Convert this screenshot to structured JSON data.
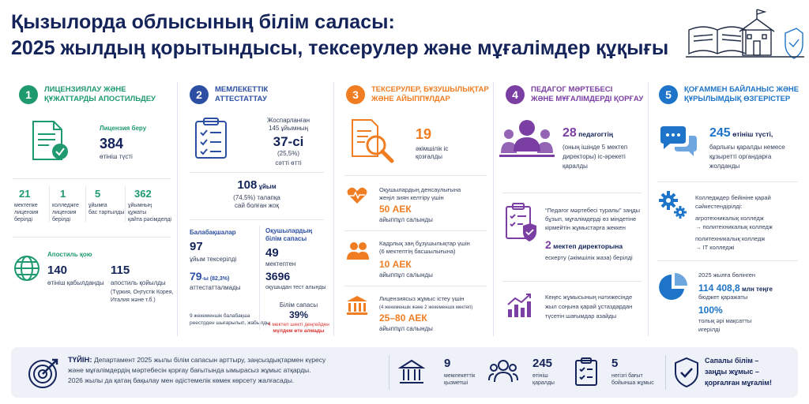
{
  "title": {
    "line1": "Қызылорда облысының білім саласы:",
    "line2": "2025 жылдың қорытындысы, тексерулер және мұғалімдер құқығы"
  },
  "colors": {
    "navy": "#14245a",
    "green": "#1f9a6e",
    "blue": "#2c4fa3",
    "orange": "#f07d22",
    "purple": "#7b3fa3",
    "lightblue": "#1e74c8",
    "red": "#d9322e"
  },
  "sections": [
    {
      "num": "1",
      "title1": "ЛИЦЕНЗИЯЛАУ ЖӘНЕ",
      "title2": "ҚҰЖАТТАРДЫ АПОСТИЛЬДЕУ",
      "license_label": "Лицензия беру",
      "license_value": "384",
      "license_sub": "өтініш түсті",
      "stats": [
        {
          "value": "21",
          "l1": "мектепке",
          "l2": "лицензия",
          "l3": "берілді"
        },
        {
          "value": "1",
          "l1": "колледжге",
          "l2": "лицензия",
          "l3": "берілді"
        },
        {
          "value": "5",
          "l1": "ұйымға",
          "l2": "бас тартылды",
          "l3": ""
        },
        {
          "value": "362",
          "l1": "ұйымның",
          "l2": "құжаты",
          "l3": "қайта рәсімделді"
        }
      ],
      "apostil_label": "Апостиль қою",
      "apostil_value1": "140",
      "apostil_sub1": "өтініш қабылданды",
      "apostil_value2": "115",
      "apostil_sub2": "апостиль қойылды",
      "apostil_sub3": "(Түркия, Оңтүстік Корея,",
      "apostil_sub4": "Италия және т.б.)"
    },
    {
      "num": "2",
      "title1": "МЕМЛЕКЕТТІК",
      "title2": "АТТЕСТАТТАУ",
      "planned1": "Жоспарланған",
      "planned2": "145 ұйымның",
      "planned_value": "37-сі",
      "planned_pct": "(25,5%)",
      "planned_sub": "сәтті өтті",
      "fail_value": "108",
      "fail_unit": " ұйым",
      "fail_sub1": "(74,5%) талапқа",
      "fail_sub2": "сай болған жоқ",
      "kinder_label": "Балабақшалар",
      "kinder_value": "97",
      "kinder_sub": "ұйым тексерілді",
      "kinder_value2": "79",
      "kinder_pct": "-ы (82,3%)",
      "kinder_sub2": "аттестатталмады",
      "kinder_note1": "9 жекеменшік балабақша",
      "kinder_note2": "реестрден шығарылып, жабылды",
      "quality_label1": "Оқушылардың",
      "quality_label2": "білім сапасы",
      "quality_value": "49",
      "quality_sub": "мектептен",
      "quality_value2": "3696",
      "quality_sub2": "оқушыдан тест алынды",
      "quality_note1": "Білім сапасы",
      "quality_note_value": "39%",
      "quality_note2": "4 мектеп шекті деңгейден",
      "quality_note3": "мүлдем өте алмады"
    },
    {
      "num": "3",
      "title1": "ТЕКСЕРУЛЕР, БҰЗУШЫЛЫҚТАР",
      "title2": "ЖӘНЕ АЙЫППҰЛДАР",
      "cases_value": "19",
      "cases_sub1": "әкімшілік іс",
      "cases_sub2": "қозғалды",
      "fines": [
        {
          "d1": "Оқушылардың денсаулығына",
          "d2": "жеңіл зиян келтіру үшін",
          "value": "50 АЕК",
          "sub": "айыппұл салынды"
        },
        {
          "d1": "Кадрлық заң бұзушылықтар үшін",
          "d2": "(6 мектептің басшылығына)",
          "value": "10 АЕК",
          "sub": "айыппұл салынды"
        },
        {
          "d1": "Лицензиясыз жұмыс істеу үшін",
          "d2": "(4 жекеменшік және 2 жекеменшік мектеп)",
          "value": "25–80 АЕК",
          "sub": "айыппұл салынды"
        }
      ]
    },
    {
      "num": "4",
      "title1": "ПЕДАГОГ МӘРТЕБЕСІ",
      "title2": "ЖӘНЕ МҰҒАЛІМДЕРДІ ҚОРҒАУ",
      "ped_value": "28",
      "ped_unit": " педагогтің",
      "ped_sub1": "(оның ішінде 5 мектеп",
      "ped_sub2": "директоры) іс-әрекеті",
      "ped_sub3": "қаралды",
      "law1": "“Педагог мәртебесі туралы” заңды",
      "law2": "бұзып, мұғалімдерді өз міндетіне",
      "law3": "кірмейтін жұмыстарға жеккен",
      "dir_value": "2",
      "dir_unit": " мектеп директорына",
      "dir_sub": "ескерту (әкімшілік жаза) берілді",
      "res1": "Кеңес жұмысының нәтижесінде",
      "res2": "жыл соңына қарай ұстаздардан",
      "res3": "түсетін шағымдар азайды"
    },
    {
      "num": "5",
      "title1": "ҚОҒАММЕН БАЙЛАНЫС ЖӘНЕ",
      "title2": "ҚҰРЫЛЫМДЫҚ ӨЗГЕРІСТЕР",
      "app_value": "245",
      "app_unit": " өтініш түсті,",
      "app_sub1": "барлығы қаралды немесе",
      "app_sub2": "құзыретті органдарға",
      "app_sub3": "жолданды",
      "coll1": "Колледждер бейініне қарай",
      "coll2": "сәйкестендірілді:",
      "coll3": "агротехникалық колледж",
      "coll4": "→ политехникалық колледж",
      "coll5": "политехникалық колледж",
      "coll6": "→ IT колледжі",
      "bud1": "2025 жылға бөлінген",
      "bud_value": "114 408,8",
      "bud_unit": " млн теңге",
      "bud2": "бюджет қаражаты",
      "bud_pct": "100%",
      "bud3": "толық әрі мақсатты",
      "bud4": "игерілді"
    }
  ],
  "footer": {
    "label": "ТҮЙІН:",
    "text1": " Департамент 2025 жылы білім сапасын арттыру, заңсыздықтармен күресу",
    "text2": "және мұғалімдердің мәртебесін қорғау бағытында ымырасыз жұмыс атқарды.",
    "text3": "2026 жылы да қатаң бақылау мен әдістемелік көмек көрсету жалғасады.",
    "stats": [
      {
        "value": "9",
        "l1": "мемлекеттік",
        "l2": "қызметші"
      },
      {
        "value": "245",
        "l1": "өтініш",
        "l2": "қаралды"
      },
      {
        "value": "5",
        "l1": "негізгі бағыт",
        "l2": "бойынша жұмыс"
      }
    ],
    "motto1": "Сапалы білім –",
    "motto2": "заңды жұмыс –",
    "motto3": "қорғалған мұғалім!"
  }
}
